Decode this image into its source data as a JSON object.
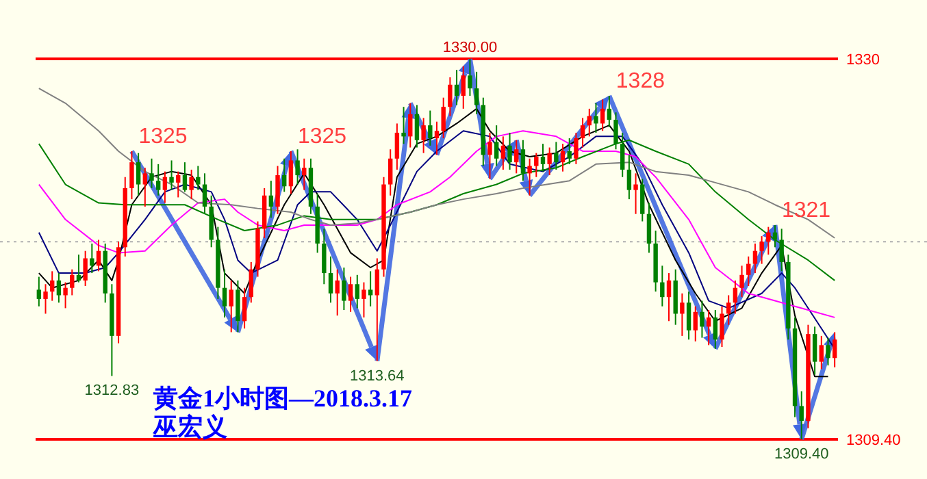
{
  "chart_data": {
    "type": "candlestick",
    "title": "黄金1小时图—2018.3.17",
    "subtitle": "巫宏义",
    "categories": [
      null,
      null,
      null,
      null,
      null,
      null,
      null,
      null,
      null,
      null,
      null,
      null,
      null,
      null,
      null,
      null,
      null,
      null,
      null,
      null,
      null,
      null,
      null,
      null,
      null,
      null,
      null,
      null,
      null,
      null,
      null,
      null,
      null,
      null,
      null,
      null,
      null,
      null,
      null,
      null,
      null,
      null,
      null,
      null,
      null,
      null,
      null,
      null,
      null,
      null,
      null,
      null,
      null,
      null,
      null,
      null,
      null,
      null,
      null,
      null,
      null,
      null,
      null,
      null,
      null,
      null,
      null,
      null,
      null,
      null,
      null,
      null,
      null,
      null,
      null,
      null,
      null,
      null,
      null,
      null,
      null,
      null,
      null,
      null,
      null,
      null,
      null,
      null,
      null,
      null,
      null,
      null,
      null,
      null,
      null,
      null,
      null,
      null,
      null,
      null,
      null,
      null,
      null,
      null,
      null,
      null,
      null,
      null,
      null,
      null,
      null,
      null,
      null,
      null,
      null,
      null,
      null,
      null,
      null,
      null,
      null
    ],
    "ohlc": [
      [
        1317.5,
        1318.2,
        1316.6,
        1317.0
      ],
      [
        1317.0,
        1317.8,
        1316.2,
        1317.4
      ],
      [
        1317.4,
        1318.5,
        1316.9,
        1318.0
      ],
      [
        1318.0,
        1318.4,
        1316.8,
        1317.2
      ],
      [
        1317.2,
        1317.9,
        1316.5,
        1317.6
      ],
      [
        1317.6,
        1318.6,
        1317.2,
        1318.3
      ],
      [
        1318.3,
        1319.4,
        1317.9,
        1318.0
      ],
      [
        1318.0,
        1319.6,
        1317.7,
        1319.2
      ],
      [
        1319.2,
        1320.0,
        1318.4,
        1318.8
      ],
      [
        1318.8,
        1320.2,
        1318.5,
        1319.6
      ],
      [
        1319.6,
        1320.0,
        1316.8,
        1317.3
      ],
      [
        1317.3,
        1317.8,
        1312.83,
        1315.0
      ],
      [
        1315.0,
        1320.1,
        1314.6,
        1319.8
      ],
      [
        1319.8,
        1323.6,
        1319.3,
        1323.0
      ],
      [
        1323.0,
        1325.0,
        1322.4,
        1324.4
      ],
      [
        1324.4,
        1324.9,
        1322.6,
        1323.2
      ],
      [
        1323.2,
        1324.1,
        1322.0,
        1323.8
      ],
      [
        1323.8,
        1324.6,
        1323.0,
        1323.4
      ],
      [
        1323.4,
        1324.3,
        1322.6,
        1322.9
      ],
      [
        1322.9,
        1323.9,
        1322.2,
        1323.6
      ],
      [
        1323.6,
        1324.5,
        1322.9,
        1323.3
      ],
      [
        1323.3,
        1323.9,
        1322.5,
        1323.7
      ],
      [
        1323.7,
        1324.4,
        1322.8,
        1322.9
      ],
      [
        1322.9,
        1324.0,
        1322.4,
        1323.6
      ],
      [
        1323.6,
        1324.2,
        1322.9,
        1323.2
      ],
      [
        1323.2,
        1323.8,
        1321.6,
        1322.0
      ],
      [
        1322.0,
        1322.6,
        1319.8,
        1320.2
      ],
      [
        1320.2,
        1320.9,
        1317.0,
        1317.6
      ],
      [
        1317.6,
        1318.6,
        1316.0,
        1316.6
      ],
      [
        1316.6,
        1318.0,
        1315.2,
        1317.5
      ],
      [
        1317.5,
        1318.0,
        1315.2,
        1315.8
      ],
      [
        1315.8,
        1317.6,
        1315.4,
        1317.1
      ],
      [
        1317.1,
        1319.0,
        1316.8,
        1318.6
      ],
      [
        1318.6,
        1321.2,
        1318.2,
        1320.8
      ],
      [
        1320.8,
        1323.0,
        1320.3,
        1322.6
      ],
      [
        1322.6,
        1323.4,
        1321.4,
        1322.0
      ],
      [
        1322.0,
        1324.2,
        1321.6,
        1323.7
      ],
      [
        1323.7,
        1324.6,
        1322.8,
        1323.1
      ],
      [
        1323.1,
        1325.0,
        1322.7,
        1324.5
      ],
      [
        1324.5,
        1325.1,
        1323.2,
        1323.7
      ],
      [
        1323.7,
        1324.6,
        1322.9,
        1324.1
      ],
      [
        1324.1,
        1324.6,
        1321.6,
        1322.0
      ],
      [
        1322.0,
        1322.7,
        1319.5,
        1320.0
      ],
      [
        1320.0,
        1320.8,
        1317.8,
        1318.4
      ],
      [
        1318.4,
        1319.3,
        1316.8,
        1317.3
      ],
      [
        1317.3,
        1318.6,
        1316.1,
        1318.0
      ],
      [
        1318.0,
        1318.7,
        1316.4,
        1316.9
      ],
      [
        1316.9,
        1318.2,
        1316.3,
        1317.8
      ],
      [
        1317.8,
        1318.3,
        1316.5,
        1317.0
      ],
      [
        1317.0,
        1317.9,
        1316.0,
        1317.5
      ],
      [
        1317.5,
        1318.5,
        1316.6,
        1317.2
      ],
      [
        1317.2,
        1319.2,
        1313.64,
        1318.6
      ],
      [
        1318.6,
        1323.6,
        1318.2,
        1323.2
      ],
      [
        1323.2,
        1325.1,
        1322.6,
        1324.6
      ],
      [
        1324.6,
        1326.5,
        1324.0,
        1326.0
      ],
      [
        1326.0,
        1327.4,
        1325.4,
        1325.8
      ],
      [
        1325.8,
        1327.6,
        1325.2,
        1327.0
      ],
      [
        1327.0,
        1327.5,
        1325.2,
        1325.6
      ],
      [
        1325.6,
        1326.8,
        1324.9,
        1326.4
      ],
      [
        1326.4,
        1327.2,
        1325.3,
        1325.7
      ],
      [
        1325.7,
        1326.6,
        1324.8,
        1326.1
      ],
      [
        1326.1,
        1327.9,
        1325.7,
        1327.4
      ],
      [
        1327.4,
        1329.0,
        1326.9,
        1328.6
      ],
      [
        1328.6,
        1329.4,
        1327.5,
        1328.0
      ],
      [
        1328.0,
        1329.6,
        1327.3,
        1329.1
      ],
      [
        1329.1,
        1330.0,
        1328.0,
        1328.4
      ],
      [
        1328.4,
        1329.3,
        1327.0,
        1327.5
      ],
      [
        1327.5,
        1327.9,
        1324.2,
        1324.8
      ],
      [
        1324.8,
        1326.0,
        1323.5,
        1325.5
      ],
      [
        1325.5,
        1326.4,
        1324.2,
        1324.6
      ],
      [
        1324.6,
        1325.8,
        1324.0,
        1325.3
      ],
      [
        1325.3,
        1326.0,
        1324.0,
        1324.4
      ],
      [
        1324.4,
        1325.6,
        1323.8,
        1325.1
      ],
      [
        1325.1,
        1325.6,
        1323.4,
        1323.8
      ],
      [
        1323.8,
        1324.6,
        1322.6,
        1324.2
      ],
      [
        1324.2,
        1324.9,
        1323.6,
        1324.7
      ],
      [
        1324.7,
        1325.4,
        1323.9,
        1324.3
      ],
      [
        1324.3,
        1325.2,
        1323.7,
        1324.9
      ],
      [
        1324.9,
        1325.5,
        1324.0,
        1324.4
      ],
      [
        1324.4,
        1325.4,
        1323.9,
        1325.0
      ],
      [
        1325.0,
        1325.7,
        1324.3,
        1324.6
      ],
      [
        1324.6,
        1326.0,
        1324.3,
        1325.7
      ],
      [
        1325.7,
        1326.8,
        1325.2,
        1326.4
      ],
      [
        1326.4,
        1327.3,
        1325.8,
        1326.9
      ],
      [
        1326.9,
        1327.6,
        1326.0,
        1326.5
      ],
      [
        1326.5,
        1327.8,
        1326.1,
        1327.3
      ],
      [
        1327.3,
        1328.0,
        1326.3,
        1326.7
      ],
      [
        1326.7,
        1327.1,
        1325.1,
        1325.4
      ],
      [
        1325.4,
        1326.0,
        1323.6,
        1324.0
      ],
      [
        1324.0,
        1324.8,
        1322.4,
        1322.9
      ],
      [
        1322.9,
        1323.8,
        1321.6,
        1323.2
      ],
      [
        1323.2,
        1323.5,
        1321.2,
        1321.6
      ],
      [
        1321.6,
        1322.2,
        1319.5,
        1320.0
      ],
      [
        1320.0,
        1320.7,
        1317.4,
        1317.9
      ],
      [
        1317.9,
        1318.8,
        1316.6,
        1317.1
      ],
      [
        1317.1,
        1318.4,
        1315.8,
        1318.0
      ],
      [
        1318.0,
        1318.6,
        1315.6,
        1316.2
      ],
      [
        1316.2,
        1317.3,
        1315.0,
        1316.8
      ],
      [
        1316.8,
        1317.4,
        1314.8,
        1315.3
      ],
      [
        1315.3,
        1316.6,
        1314.7,
        1316.3
      ],
      [
        1316.3,
        1316.9,
        1314.9,
        1315.5
      ],
      [
        1315.5,
        1316.4,
        1314.5,
        1316.0
      ],
      [
        1316.0,
        1316.4,
        1314.3,
        1314.8
      ],
      [
        1314.8,
        1316.6,
        1314.4,
        1316.2
      ],
      [
        1316.2,
        1317.2,
        1315.6,
        1316.8
      ],
      [
        1316.8,
        1318.0,
        1316.2,
        1317.6
      ],
      [
        1317.6,
        1318.8,
        1317.1,
        1318.3
      ],
      [
        1318.3,
        1319.3,
        1317.7,
        1318.9
      ],
      [
        1318.9,
        1320.0,
        1318.4,
        1319.6
      ],
      [
        1319.6,
        1320.4,
        1318.9,
        1320.1
      ],
      [
        1320.1,
        1320.9,
        1319.4,
        1320.6
      ],
      [
        1320.6,
        1321.0,
        1319.8,
        1320.2
      ],
      [
        1320.2,
        1320.8,
        1318.5,
        1319.0
      ],
      [
        1319.0,
        1319.4,
        1314.8,
        1315.4
      ],
      [
        1315.4,
        1316.0,
        1310.6,
        1311.2
      ],
      [
        1311.2,
        1312.0,
        1309.4,
        1310.4
      ],
      [
        1310.4,
        1315.6,
        1310.0,
        1315.1
      ],
      [
        1315.1,
        1315.5,
        1312.9,
        1313.6
      ],
      [
        1313.6,
        1315.0,
        1313.2,
        1314.5
      ],
      [
        1314.5,
        1314.9,
        1313.4,
        1313.8
      ],
      [
        1313.8,
        1315.2,
        1313.3,
        1314.8
      ]
    ],
    "value_labels": [
      null,
      null,
      null,
      null,
      null,
      null,
      null,
      null,
      null,
      null,
      null,
      "1312.83",
      null,
      null,
      "1325",
      null,
      null,
      null,
      null,
      null,
      null,
      null,
      null,
      null,
      null,
      null,
      null,
      null,
      null,
      null,
      null,
      null,
      null,
      null,
      null,
      null,
      null,
      null,
      "1325",
      null,
      null,
      null,
      null,
      null,
      null,
      null,
      null,
      null,
      null,
      null,
      null,
      "1313.64",
      null,
      null,
      null,
      null,
      null,
      null,
      null,
      null,
      null,
      null,
      null,
      null,
      null,
      "1330.00",
      null,
      null,
      null,
      null,
      null,
      null,
      null,
      null,
      null,
      null,
      null,
      null,
      null,
      null,
      null,
      null,
      null,
      null,
      null,
      null,
      "1328",
      null,
      null,
      null,
      null,
      null,
      null,
      null,
      null,
      null,
      null,
      null,
      null,
      null,
      null,
      null,
      null,
      null,
      null,
      null,
      null,
      null,
      null,
      null,
      null,
      "1321",
      null,
      null,
      null,
      "1309.40",
      null,
      null,
      null,
      null,
      null
    ],
    "series": [
      {
        "type": "line",
        "color": "#000000",
        "values": [
          1318.4,
          null,
          1317.6,
          null,
          null,
          null,
          1318.0,
          null,
          null,
          1319.1,
          null,
          1318.0,
          1319.1,
          null,
          1322.1,
          null,
          null,
          1323.6,
          null,
          null,
          1323.9,
          null,
          null,
          1323.7,
          null,
          null,
          1322.1,
          null,
          1318.4,
          null,
          null,
          1317.3,
          null,
          1319.1,
          null,
          null,
          null,
          1322.1,
          null,
          null,
          1323.8,
          null,
          null,
          1322.1,
          null,
          null,
          null,
          1319.5,
          null,
          null,
          1318.7,
          null,
          1319.1,
          null,
          1323.6,
          null,
          null,
          1325.4,
          null,
          null,
          1325.8,
          null,
          null,
          1326.5,
          null,
          null,
          1327.3,
          null,
          1326.1,
          null,
          null,
          1325.0,
          null,
          null,
          1324.7,
          null,
          null,
          null,
          1324.9,
          null,
          null,
          null,
          1325.8,
          null,
          null,
          null,
          1326.4,
          null,
          null,
          1325.0,
          null,
          null,
          1322.1,
          null,
          null,
          null,
          1319.1,
          null,
          null,
          1317.3,
          null,
          null,
          1315.8,
          null,
          null,
          null,
          1316.5,
          null,
          null,
          1318.4,
          null,
          null,
          1319.9,
          null,
          1316.1,
          null,
          null,
          1312.8,
          null,
          1312.8,
          null
        ]
      },
      {
        "type": "line",
        "color": "#000080",
        "values": [
          1320.6,
          null,
          null,
          1318.4,
          null,
          null,
          null,
          1318.4,
          null,
          null,
          1318.7,
          null,
          1319.5,
          null,
          null,
          null,
          1321.3,
          null,
          null,
          1322.8,
          null,
          null,
          1323.2,
          null,
          null,
          null,
          1322.8,
          null,
          1321.3,
          null,
          1319.1,
          null,
          1318.4,
          null,
          null,
          null,
          1319.1,
          null,
          null,
          1322.1,
          null,
          1322.8,
          null,
          null,
          1322.8,
          null,
          null,
          null,
          1321.3,
          null,
          null,
          1319.6,
          null,
          1321.0,
          null,
          null,
          null,
          1323.9,
          null,
          null,
          1325.0,
          null,
          null,
          null,
          1326.1,
          null,
          null,
          null,
          1325.8,
          null,
          null,
          1324.3,
          null,
          null,
          null,
          null,
          1323.9,
          null,
          null,
          null,
          1324.7,
          null,
          null,
          null,
          1325.8,
          null,
          null,
          null,
          1325.8,
          null,
          null,
          1324.3,
          null,
          null,
          1322.1,
          null,
          null,
          null,
          1319.5,
          null,
          null,
          1316.9,
          null,
          null,
          1316.5,
          null,
          null,
          null,
          null,
          1317.3,
          null,
          null,
          1318.4,
          null,
          1317.6,
          null,
          null,
          null,
          1315.4,
          null,
          1314.3
        ]
      },
      {
        "type": "line",
        "color": "#ff00ff",
        "values": [
          1323.2,
          null,
          null,
          null,
          1321.3,
          null,
          null,
          null,
          null,
          1319.9,
          null,
          null,
          1319.5,
          null,
          null,
          null,
          1319.6,
          null,
          null,
          null,
          1321.0,
          null,
          null,
          null,
          1322.2,
          null,
          null,
          null,
          1322.4,
          null,
          1321.7,
          null,
          null,
          1321.0,
          null,
          null,
          null,
          1320.7,
          null,
          null,
          1321.0,
          null,
          null,
          null,
          1321.0,
          null,
          null,
          null,
          1321.0,
          null,
          null,
          1321.3,
          null,
          null,
          1322.1,
          null,
          null,
          null,
          null,
          1322.8,
          null,
          null,
          1323.6,
          null,
          null,
          null,
          1325.0,
          null,
          null,
          1325.8,
          null,
          null,
          null,
          1326.1,
          null,
          null,
          null,
          null,
          1325.8,
          null,
          null,
          null,
          1325.0,
          null,
          null,
          null,
          null,
          1325.0,
          null,
          null,
          1324.7,
          null,
          null,
          1323.6,
          null,
          null,
          null,
          null,
          1321.3,
          null,
          null,
          null,
          1318.7,
          null,
          null,
          null,
          null,
          1317.3,
          null,
          null,
          null,
          1316.9,
          null,
          1316.7,
          null,
          null,
          null,
          1316.3,
          null,
          null,
          1316.0
        ]
      },
      {
        "type": "line",
        "color": "#008000",
        "values": [
          1325.4,
          null,
          null,
          null,
          1323.2,
          null,
          null,
          null,
          null,
          1322.2,
          null,
          null,
          null,
          1322.1,
          null,
          null,
          null,
          null,
          1322.1,
          null,
          null,
          null,
          1322.1,
          null,
          null,
          null,
          null,
          1321.3,
          null,
          null,
          null,
          1320.7,
          null,
          null,
          null,
          null,
          1321.0,
          null,
          null,
          null,
          1321.5,
          null,
          null,
          null,
          1321.3,
          null,
          null,
          null,
          1321.3,
          null,
          null,
          1321.3,
          null,
          null,
          null,
          null,
          1321.7,
          null,
          null,
          null,
          1322.1,
          null,
          null,
          null,
          1322.7,
          null,
          null,
          null,
          null,
          1323.2,
          null,
          null,
          null,
          1323.8,
          null,
          null,
          null,
          null,
          1324.1,
          null,
          null,
          null,
          1324.7,
          null,
          null,
          null,
          null,
          1325.4,
          null,
          1325.6,
          null,
          null,
          null,
          1325.0,
          null,
          null,
          null,
          null,
          1324.3,
          null,
          null,
          null,
          1322.8,
          null,
          null,
          null,
          null,
          1321.3,
          null,
          null,
          null,
          1320.2,
          null,
          null,
          null,
          null,
          1319.1,
          null,
          null,
          null,
          1318.0
        ]
      },
      {
        "type": "line",
        "color": "#808080",
        "values": [
          1328.4,
          null,
          null,
          null,
          1327.6,
          null,
          null,
          null,
          null,
          1326.1,
          null,
          null,
          1325.0,
          null,
          null,
          null,
          1323.9,
          null,
          null,
          null,
          1323.2,
          null,
          null,
          null,
          1322.2,
          null,
          null,
          null,
          null,
          1322.1,
          null,
          null,
          null,
          1321.9,
          null,
          null,
          null,
          null,
          1321.7,
          null,
          null,
          1321.3,
          null,
          null,
          1321.0,
          null,
          null,
          null,
          1321.1,
          null,
          null,
          1321.3,
          null,
          null,
          null,
          null,
          1321.7,
          null,
          null,
          null,
          1322.1,
          null,
          null,
          null,
          1322.4,
          null,
          null,
          null,
          null,
          1322.7,
          null,
          null,
          null,
          1323.0,
          null,
          null,
          null,
          null,
          null,
          null,
          1323.4,
          null,
          null,
          null,
          1324.3,
          null,
          null,
          null,
          null,
          1324.4,
          null,
          null,
          null,
          1323.9,
          null,
          null,
          null,
          null,
          1323.7,
          null,
          null,
          null,
          1323.3,
          null,
          null,
          null,
          null,
          1322.8,
          null,
          null,
          null,
          1322.1,
          null,
          null,
          null,
          null,
          1321.3,
          null,
          null,
          null,
          1320.3
        ]
      }
    ],
    "ylim": [
      1309.4,
      1330
    ],
    "yticks": [
      1330,
      {
        "value": 1309.4,
        "label": "1309.40"
      }
    ],
    "tick_labels": "y",
    "ref_lines": [
      {
        "axis": "y",
        "value": 1330,
        "color": "#ff0000",
        "line_style": "solid"
      },
      {
        "axis": "y",
        "value": 1309.4,
        "color": "#ff0000",
        "line_style": "solid"
      },
      {
        "axis": "y",
        "value": 1320.1,
        "color": "#b0b0b0",
        "line_style": "dotted"
      }
    ]
  }
}
